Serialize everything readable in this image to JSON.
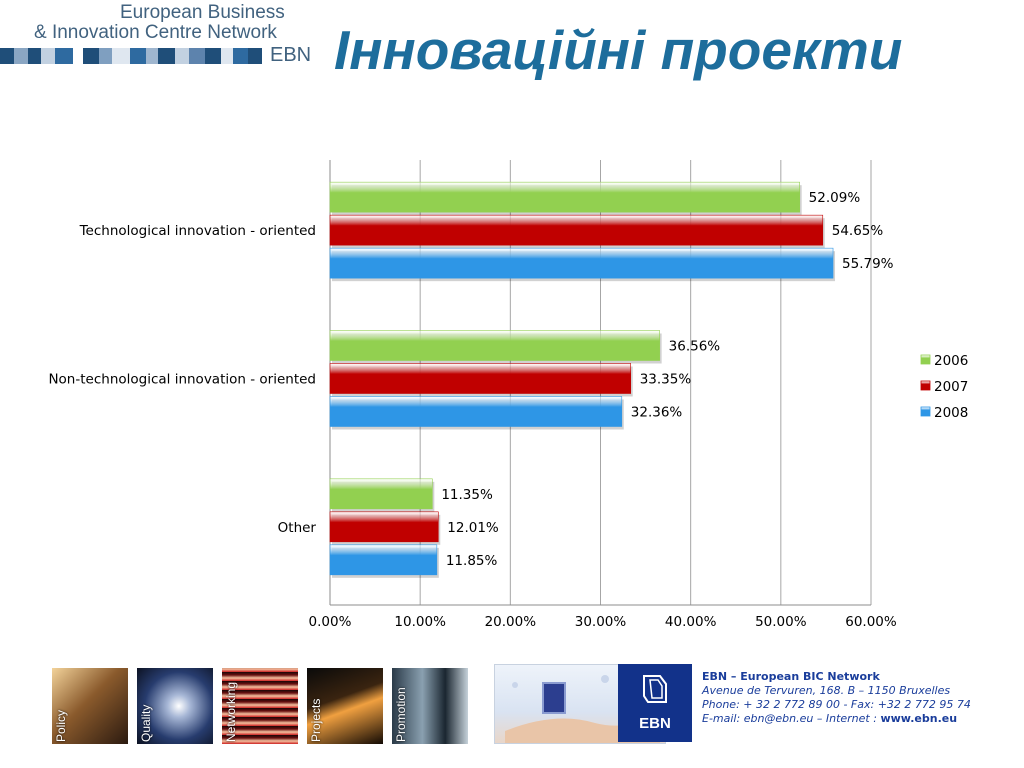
{
  "header": {
    "logo_line1": "European Business",
    "logo_line2": "& Innovation Centre Network",
    "logo_short": "EBN",
    "title": "Інноваційні проекти"
  },
  "chart_data": {
    "type": "bar",
    "orientation": "horizontal",
    "categories": [
      "Technological innovation - oriented",
      "Non-technological innovation - oriented",
      "Other"
    ],
    "series": [
      {
        "name": "2006",
        "values": [
          52.09,
          36.56,
          11.35
        ],
        "color": "#92d050"
      },
      {
        "name": "2007",
        "values": [
          54.65,
          33.35,
          12.01
        ],
        "color": "#c00000"
      },
      {
        "name": "2008",
        "values": [
          55.79,
          32.36,
          11.85
        ],
        "color": "#2e96e6"
      }
    ],
    "value_labels": [
      [
        "52.09%",
        "36.56%",
        "11.35%"
      ],
      [
        "54.65%",
        "33.35%",
        "12.01%"
      ],
      [
        "55.79%",
        "32.36%",
        "11.85%"
      ]
    ],
    "x_ticks": [
      "0.00%",
      "10.00%",
      "20.00%",
      "30.00%",
      "40.00%",
      "50.00%",
      "60.00%"
    ],
    "xlim": [
      0,
      60
    ],
    "grid": true,
    "legend_position": "right"
  },
  "footer": {
    "photos": [
      {
        "label": "Policy"
      },
      {
        "label": "Quality"
      },
      {
        "label": "Networking"
      },
      {
        "label": "Projects"
      },
      {
        "label": "Promotion"
      }
    ],
    "ebn_logo": "EBN",
    "contact_org": "EBN – European BIC Network",
    "contact_address": "Avenue de Tervuren, 168.  B – 1150 Bruxelles",
    "contact_phone": "Phone: + 32 2 772 89 00 - Fax: +32 2 772 95 74",
    "contact_email_prefix": "E-mail: ebn@ebn.eu – Internet : ",
    "contact_web": "www.ebn.eu"
  }
}
